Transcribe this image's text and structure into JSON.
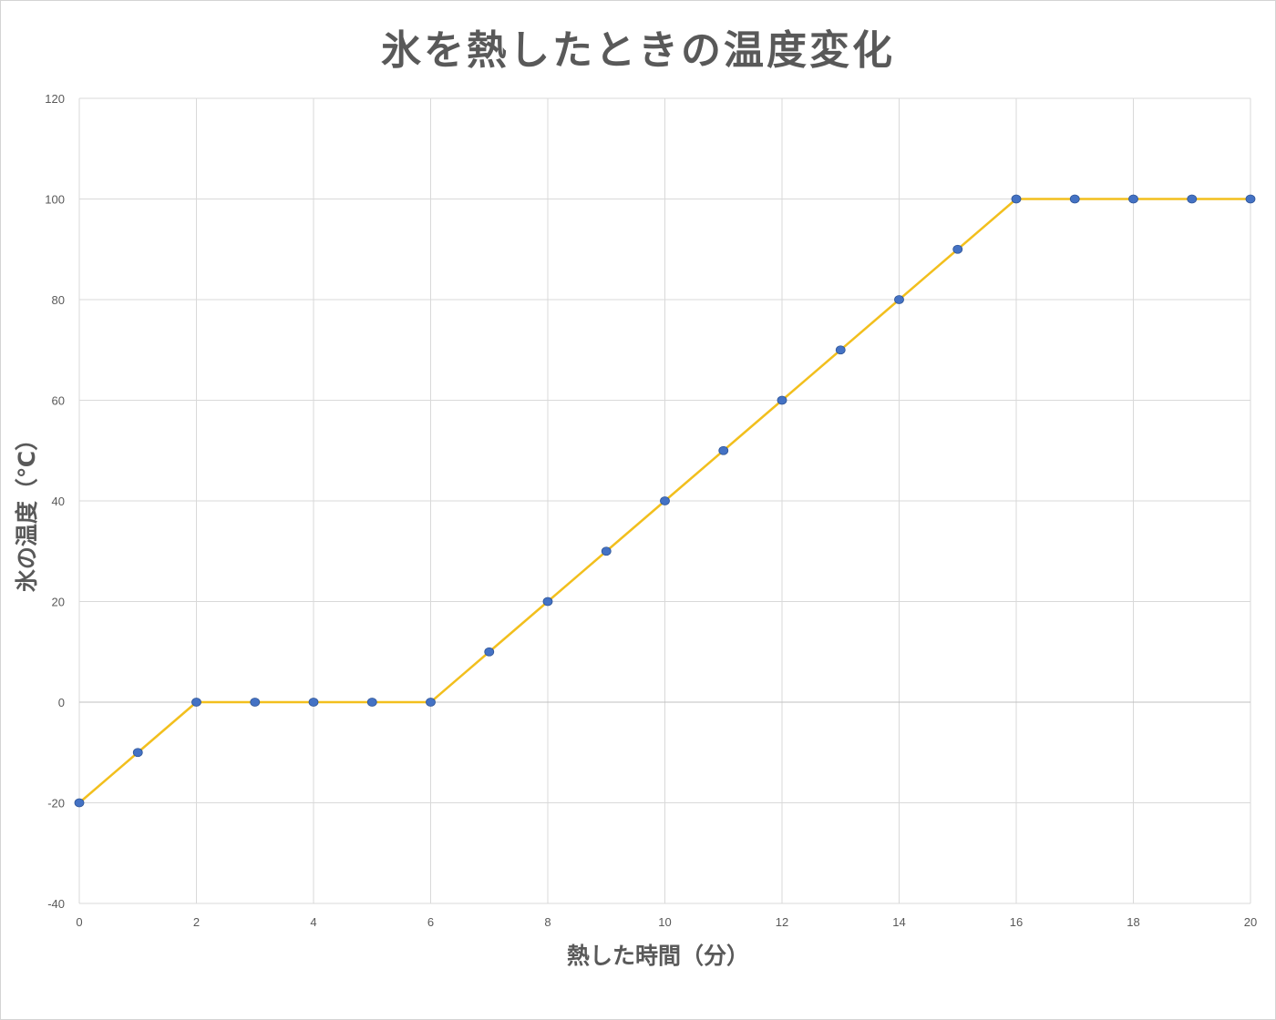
{
  "chart_data": {
    "type": "line",
    "title": "氷を熱したときの温度変化",
    "xlabel": "熱した時間（分）",
    "ylabel": "氷の温度（℃）",
    "xlim": [
      0,
      20
    ],
    "ylim": [
      -40,
      120
    ],
    "x_ticks": [
      0,
      2,
      4,
      6,
      8,
      10,
      12,
      14,
      16,
      18,
      20
    ],
    "y_ticks": [
      -40,
      -20,
      0,
      20,
      40,
      60,
      80,
      100,
      120
    ],
    "grid": true,
    "legend": "none",
    "series": [
      {
        "x": [
          0,
          1,
          2,
          3,
          4,
          5,
          6,
          7,
          8,
          9,
          10,
          11,
          12,
          13,
          14,
          15,
          16,
          17,
          18,
          19,
          20
        ],
        "y": [
          -20,
          -10,
          0,
          0,
          0,
          0,
          0,
          10,
          20,
          30,
          40,
          50,
          60,
          70,
          80,
          90,
          100,
          100,
          100,
          100,
          100
        ],
        "line_color": "#f2bf1d",
        "marker_color": "#4472c4"
      }
    ]
  }
}
